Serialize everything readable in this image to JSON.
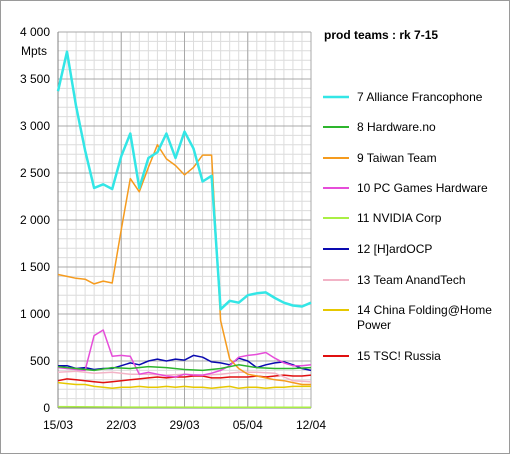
{
  "chart_data": {
    "type": "line",
    "title": "prod teams :  rk 7-15",
    "ylabel": "Mpts",
    "ylim": [
      0,
      4000
    ],
    "y_ticks": [
      "0",
      "500",
      "1 000",
      "1 500",
      "2 000",
      "2 500",
      "3 000",
      "3 500",
      "4 000"
    ],
    "y_tick_values": [
      0,
      500,
      1000,
      1500,
      2000,
      2500,
      3000,
      3500,
      4000
    ],
    "x_tick_labels": [
      "15/03",
      "22/03",
      "29/03",
      "05/04",
      "12/04"
    ],
    "x_tick_days": [
      0,
      7,
      14,
      21,
      28
    ],
    "xlim_days": [
      0,
      28
    ],
    "grid": true,
    "legend_position": "right",
    "series": [
      {
        "name": "7 Alliance Francophone",
        "color": "#33e6e6",
        "x": [
          0,
          1,
          2,
          3,
          4,
          5,
          6,
          7,
          8,
          9,
          10,
          11,
          12,
          13,
          14,
          15,
          16,
          17,
          18,
          19,
          20,
          21,
          22,
          23,
          24,
          25,
          26,
          27,
          28
        ],
        "values": [
          3370,
          3790,
          3210,
          2740,
          2340,
          2380,
          2330,
          2680,
          2920,
          2340,
          2660,
          2720,
          2920,
          2660,
          2940,
          2760,
          2410,
          2470,
          1050,
          1140,
          1120,
          1200,
          1220,
          1230,
          1170,
          1120,
          1090,
          1080,
          1120
        ]
      },
      {
        "name": "8 Hardware.no",
        "color": "#2db52d",
        "x": [
          0,
          2,
          4,
          6,
          8,
          10,
          12,
          14,
          16,
          18,
          20,
          22,
          24,
          26,
          28
        ],
        "values": [
          440,
          420,
          400,
          430,
          420,
          440,
          430,
          410,
          400,
          420,
          460,
          430,
          420,
          420,
          430
        ]
      },
      {
        "name": "9 Taiwan Team",
        "color": "#f59b1e",
        "x": [
          0,
          1,
          2,
          3,
          4,
          5,
          6,
          7,
          8,
          9,
          10,
          11,
          12,
          13,
          14,
          15,
          16,
          17,
          18,
          19,
          20,
          21,
          22,
          23,
          24,
          25,
          26,
          27,
          28
        ],
        "values": [
          1420,
          1400,
          1380,
          1370,
          1320,
          1350,
          1330,
          1900,
          2440,
          2300,
          2560,
          2800,
          2650,
          2580,
          2480,
          2560,
          2690,
          2690,
          930,
          520,
          420,
          360,
          340,
          320,
          300,
          290,
          270,
          250,
          250
        ]
      },
      {
        "name": "10 PC Games Hardware",
        "color": "#e64dd9",
        "x": [
          0,
          1,
          2,
          3,
          4,
          5,
          6,
          7,
          8,
          9,
          10,
          11,
          12,
          13,
          14,
          15,
          16,
          17,
          18,
          19,
          20,
          21,
          22,
          23,
          24,
          25,
          26,
          27,
          28
        ],
        "values": [
          430,
          420,
          410,
          400,
          770,
          830,
          550,
          560,
          550,
          360,
          380,
          360,
          340,
          330,
          360,
          350,
          350,
          370,
          400,
          450,
          540,
          560,
          570,
          590,
          530,
          480,
          450,
          450,
          460
        ]
      },
      {
        "name": "11 NVIDIA Corp",
        "color": "#aaef44",
        "x": [
          0,
          4,
          8,
          12,
          16,
          20,
          24,
          28
        ],
        "values": [
          15,
          12,
          10,
          10,
          8,
          8,
          8,
          8
        ]
      },
      {
        "name": "12 [H]ardOCP",
        "color": "#0a0ab0",
        "x": [
          0,
          1,
          2,
          3,
          4,
          5,
          6,
          7,
          8,
          9,
          10,
          11,
          12,
          13,
          14,
          15,
          16,
          17,
          18,
          19,
          20,
          21,
          22,
          23,
          24,
          25,
          26,
          27,
          28
        ],
        "values": [
          450,
          450,
          420,
          430,
          410,
          420,
          420,
          450,
          480,
          460,
          500,
          520,
          500,
          520,
          510,
          560,
          540,
          490,
          480,
          460,
          530,
          500,
          430,
          460,
          480,
          490,
          460,
          420,
          400
        ]
      },
      {
        "name": "13 Team AnandTech",
        "color": "#f2b3c6",
        "x": [
          0,
          2,
          4,
          6,
          8,
          10,
          12,
          14,
          16,
          18,
          20,
          22,
          24,
          26,
          28
        ],
        "values": [
          380,
          390,
          370,
          380,
          360,
          360,
          350,
          360,
          350,
          360,
          380,
          380,
          370,
          290,
          280
        ]
      },
      {
        "name": "14 China Folding@Home Power",
        "color": "#e6c800",
        "x": [
          0,
          1,
          2,
          3,
          4,
          5,
          6,
          7,
          8,
          9,
          10,
          11,
          12,
          13,
          14,
          15,
          16,
          17,
          18,
          19,
          20,
          21,
          22,
          23,
          24,
          25,
          26,
          27,
          28
        ],
        "values": [
          270,
          260,
          250,
          250,
          230,
          220,
          210,
          220,
          220,
          230,
          220,
          220,
          230,
          220,
          230,
          220,
          220,
          210,
          220,
          230,
          210,
          220,
          220,
          210,
          220,
          220,
          230,
          230,
          230
        ]
      },
      {
        "name": "15 TSC! Russia",
        "color": "#e01010",
        "x": [
          0,
          1,
          2,
          3,
          4,
          5,
          6,
          7,
          8,
          9,
          10,
          11,
          12,
          13,
          14,
          15,
          16,
          17,
          18,
          19,
          20,
          21,
          22,
          23,
          24,
          25,
          26,
          27,
          28
        ],
        "values": [
          290,
          310,
          300,
          290,
          280,
          270,
          280,
          290,
          300,
          310,
          320,
          330,
          320,
          330,
          330,
          340,
          340,
          320,
          320,
          330,
          330,
          330,
          340,
          330,
          340,
          350,
          340,
          340,
          350
        ]
      }
    ]
  }
}
